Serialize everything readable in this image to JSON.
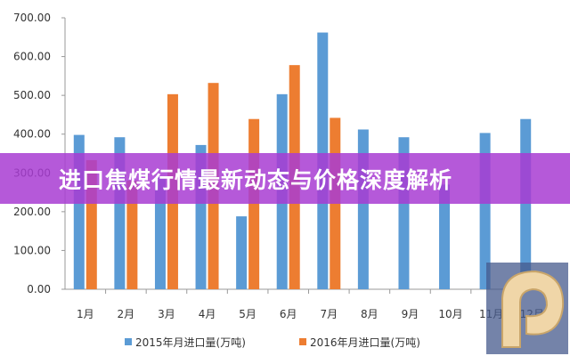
{
  "banner": {
    "title": "进口焦煤行情最新动态与价格深度解析"
  },
  "chart_data": {
    "type": "bar",
    "categories": [
      "1月",
      "2月",
      "3月",
      "4月",
      "5月",
      "6月",
      "7月",
      "8月",
      "9月",
      "10月",
      "11月",
      "12月"
    ],
    "series": [
      {
        "name": "2015年月进口量(万吨)",
        "color": "#5b9bd5",
        "values": [
          398,
          392,
          290,
          372,
          188,
          503,
          662,
          412,
          392,
          270,
          403,
          439
        ]
      },
      {
        "name": "2016年月进口量(万吨)",
        "color": "#ed7d31",
        "values": [
          333,
          280,
          503,
          532,
          439,
          578,
          442,
          null,
          null,
          null,
          null,
          null
        ]
      }
    ],
    "ylim": [
      0,
      700
    ],
    "yticks": [
      "0.00",
      "100.00",
      "200.00",
      "300.00",
      "400.00",
      "500.00",
      "600.00",
      "700.00"
    ],
    "legend": "bottom",
    "grid": false
  },
  "logo": {
    "name": "watermark-logo"
  }
}
